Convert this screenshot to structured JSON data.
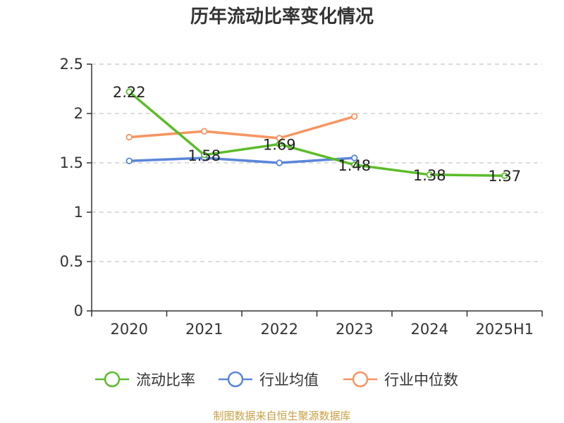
{
  "chart_data": {
    "type": "line",
    "title": "历年流动比率变化情况",
    "categories": [
      "2020",
      "2021",
      "2022",
      "2023",
      "2024",
      "2025H1"
    ],
    "ylim": [
      0,
      2.5
    ],
    "y_ticks": [
      "0",
      "0.5",
      "1",
      "1.5",
      "2",
      "2.5"
    ],
    "grid": true,
    "legend_position": "bottom",
    "series": [
      {
        "name": "流动比率",
        "color": "#5cbc2a",
        "values": [
          2.22,
          1.58,
          1.69,
          1.48,
          1.38,
          1.37
        ],
        "labels": [
          "2.22",
          "1.58",
          "1.69",
          "1.48",
          "1.38",
          "1.37"
        ]
      },
      {
        "name": "行业均值",
        "color": "#5b86d9",
        "values": [
          1.52,
          1.55,
          1.5,
          1.55,
          null,
          null
        ]
      },
      {
        "name": "行业中位数",
        "color": "#f59561",
        "values": [
          1.76,
          1.82,
          1.75,
          1.97,
          null,
          null
        ]
      }
    ]
  },
  "footer": {
    "source": "制图数据来自恒生聚源数据库"
  }
}
